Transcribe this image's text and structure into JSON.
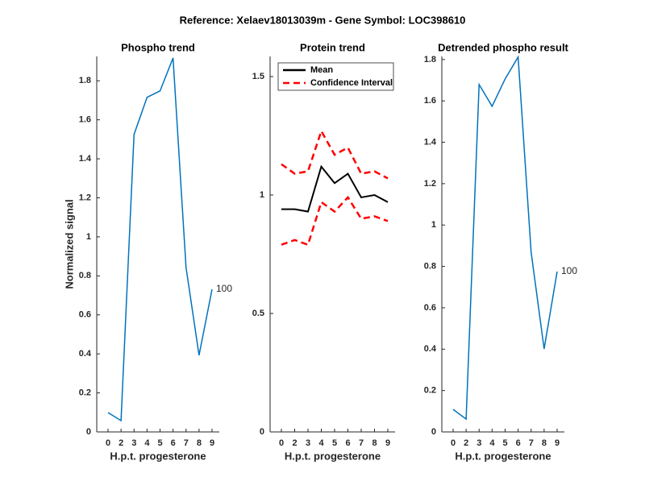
{
  "title": "Reference:  Xelaev18013039m - Gene Symbol:  LOC398610",
  "chart_data": [
    {
      "type": "line",
      "title": "Phospho trend",
      "x_label": "H.p.t. progesterone",
      "y_label": "Normalized signal",
      "categories": [
        "0",
        "2",
        "3",
        "4",
        "5",
        "6",
        "7",
        "8",
        "9"
      ],
      "series": [
        {
          "name": "Phospho",
          "color": "#0072bd",
          "values": [
            0.099,
            0.058,
            1.525,
            1.715,
            1.748,
            1.917,
            0.843,
            0.393,
            0.731
          ]
        }
      ],
      "annotation": "100",
      "ylim": [
        0,
        1.925
      ],
      "yticks": [
        0,
        0.2,
        0.4,
        0.6,
        0.8,
        1,
        1.2,
        1.4,
        1.6,
        1.8
      ]
    },
    {
      "type": "line",
      "title": "Protein trend",
      "x_label": "H.p.t. progesterone",
      "categories": [
        "0",
        "2",
        "3",
        "4",
        "5",
        "6",
        "7",
        "8",
        "9"
      ],
      "series": [
        {
          "name": "Mean",
          "color": "#000000",
          "values": [
            0.94,
            0.94,
            0.93,
            1.12,
            1.05,
            1.09,
            0.99,
            1.0,
            0.97
          ]
        },
        {
          "name": "Confidence Interval",
          "color": "#ff0000",
          "dashed": true,
          "values": [
            1.13,
            1.09,
            1.1,
            1.27,
            1.17,
            1.2,
            1.09,
            1.1,
            1.07
          ],
          "lower": [
            0.79,
            0.81,
            0.79,
            0.97,
            0.93,
            0.99,
            0.9,
            0.91,
            0.89
          ]
        }
      ],
      "legend": "upper left",
      "ylim": [
        0,
        1.585
      ],
      "yticks": [
        0,
        0.5,
        1,
        1.5
      ]
    },
    {
      "type": "line",
      "title": "Detrended phospho result",
      "x_label": "H.p.t. progesterone",
      "categories": [
        "0",
        "2",
        "3",
        "4",
        "5",
        "6",
        "7",
        "8",
        "9"
      ],
      "series": [
        {
          "name": "Detrended",
          "color": "#0072bd",
          "values": [
            0.109,
            0.062,
            1.679,
            1.574,
            1.706,
            1.812,
            0.869,
            0.401,
            0.775
          ]
        }
      ],
      "annotation": "100",
      "ylim": [
        0,
        1.815
      ],
      "yticks": [
        0,
        0.2,
        0.4,
        0.6,
        0.8,
        1,
        1.2,
        1.4,
        1.6,
        1.8
      ]
    }
  ]
}
